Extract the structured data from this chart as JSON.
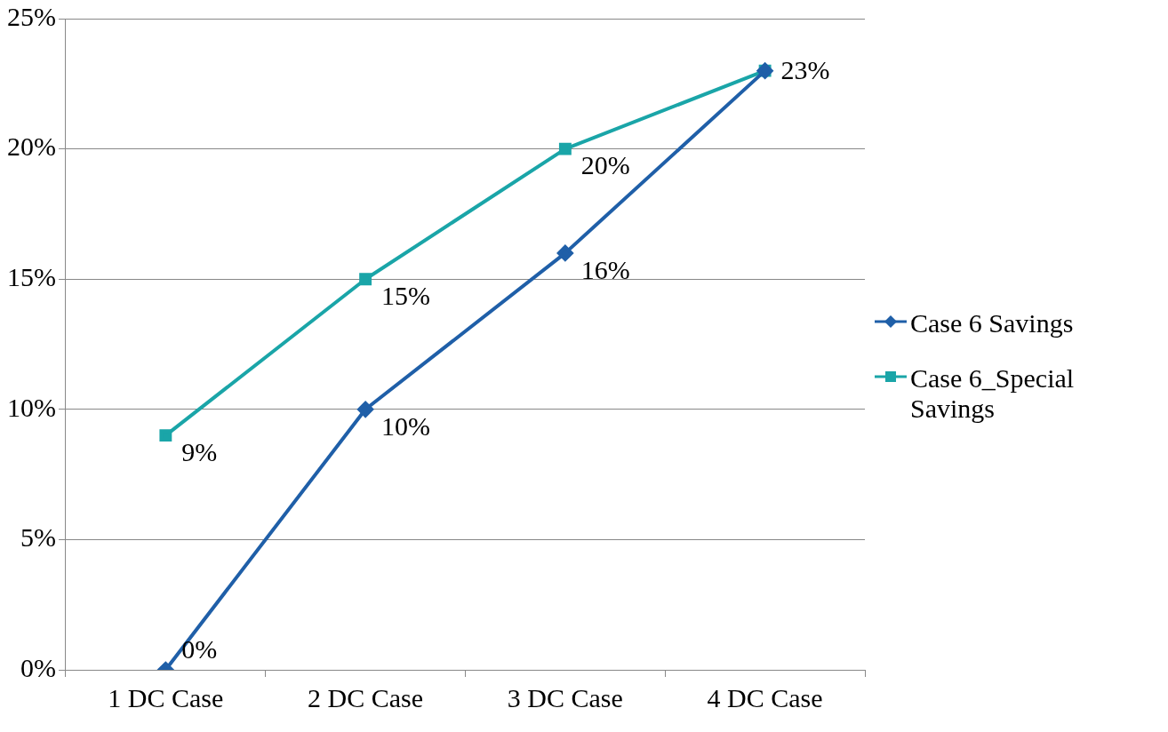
{
  "chart_data": {
    "type": "line",
    "categories": [
      "1 DC Case",
      "2 DC Case",
      "3 DC Case",
      "4 DC Case"
    ],
    "series": [
      {
        "name": "Case 6 Savings",
        "color": "#1f5fa8",
        "marker": "diamond",
        "values": [
          0,
          10,
          16,
          23
        ],
        "value_labels": [
          "0%",
          "10%",
          "16%",
          null
        ]
      },
      {
        "name": "Case 6_Special Savings",
        "color": "#1aa5a8",
        "marker": "square",
        "values": [
          9,
          15,
          20,
          23
        ],
        "value_labels": [
          "9%",
          "15%",
          "20%",
          "23%"
        ]
      }
    ],
    "ylim": [
      0,
      25
    ],
    "yticks": [
      {
        "value": 0,
        "label": "0%"
      },
      {
        "value": 5,
        "label": "5%"
      },
      {
        "value": 10,
        "label": "10%"
      },
      {
        "value": 15,
        "label": "15%"
      },
      {
        "value": 20,
        "label": "20%"
      },
      {
        "value": 25,
        "label": "25%"
      }
    ],
    "grid": "y",
    "legend": "right",
    "line_style": "solid"
  }
}
